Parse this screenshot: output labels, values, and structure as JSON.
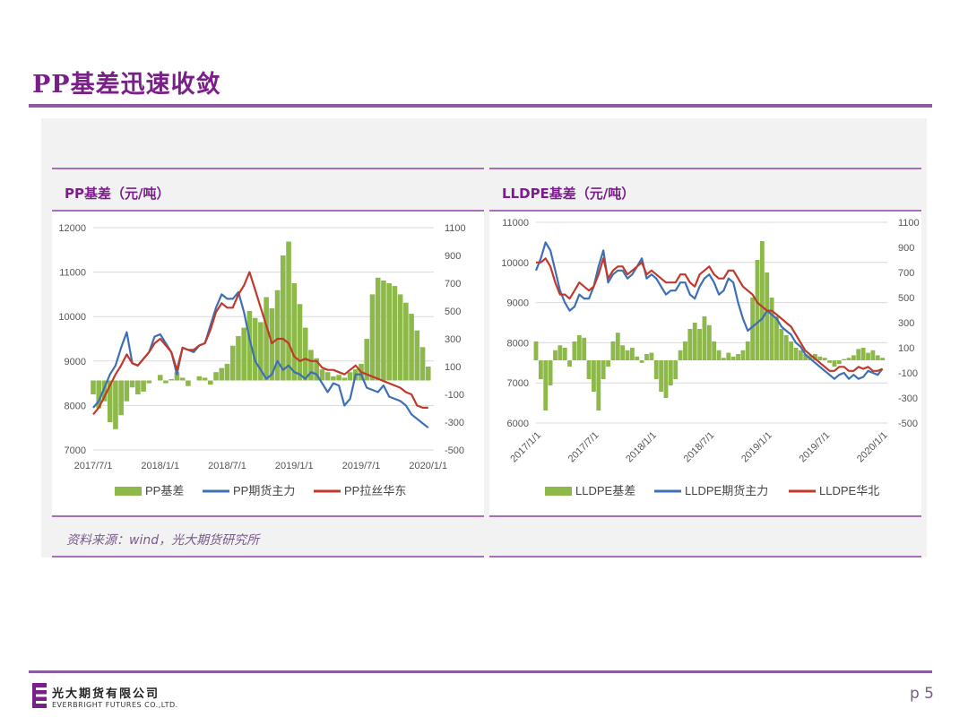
{
  "page": {
    "title": "PP基差迅速收敛",
    "page_number": "p 5"
  },
  "source_text": "资料来源：wind，光大期货研究所",
  "footer": {
    "company_cn": "光大期货有限公司",
    "company_en": "EVERBRIGHT FUTURES CO.,LTD."
  },
  "colors": {
    "purple": "#7a1f8a",
    "basis": "#8db84a",
    "futures": "#3d6fb5",
    "spot": "#c0392b"
  },
  "chart_data": [
    {
      "type": "line",
      "title": "PP基差（元/吨）",
      "x_ticks": [
        "2017/7/1",
        "2018/1/1",
        "2018/7/1",
        "2019/1/1",
        "2019/7/1",
        "2020/1/1"
      ],
      "x_tick_rotation": 0,
      "x_range": [
        0,
        30.5
      ],
      "y_left": {
        "ticks": [
          "12000",
          "11000",
          "10000",
          "9000",
          "8000",
          "7000"
        ],
        "range": [
          7000,
          12000
        ]
      },
      "y_right": {
        "ticks": [
          "1100",
          "900",
          "700",
          "500",
          "300",
          "100",
          "-100",
          "-300",
          "-500"
        ],
        "range": [
          -500,
          1100
        ]
      },
      "legend": [
        "PP基差",
        "PP期货主力",
        "PP拉丝华东"
      ],
      "series": [
        {
          "name": "PP基差",
          "kind": "bar",
          "axis": "right",
          "x": [
            0,
            0.5,
            1,
            1.5,
            2,
            2.5,
            3,
            3.5,
            4,
            4.5,
            5,
            5.5,
            6,
            6.5,
            7,
            7.5,
            8,
            8.5,
            9,
            9.5,
            10,
            10.5,
            11,
            11.5,
            12,
            12.5,
            13,
            13.5,
            14,
            14.5,
            15,
            15.5,
            16,
            16.5,
            17,
            17.5,
            18,
            18.5,
            19,
            19.5,
            20,
            20.5,
            21,
            21.5,
            22,
            22.5,
            23,
            23.5,
            24,
            24.5,
            25,
            25.5,
            26,
            26.5,
            27,
            27.5,
            28,
            28.5,
            29,
            29.5,
            30
          ],
          "values": [
            -100,
            -200,
            -150,
            -300,
            -350,
            -250,
            -150,
            -50,
            -100,
            -80,
            -20,
            0,
            40,
            -20,
            10,
            60,
            20,
            -40,
            0,
            30,
            20,
            -30,
            60,
            90,
            120,
            250,
            320,
            380,
            500,
            450,
            420,
            600,
            520,
            650,
            900,
            1000,
            700,
            550,
            380,
            220,
            160,
            80,
            60,
            30,
            40,
            20,
            60,
            80,
            120,
            300,
            620,
            740,
            720,
            700,
            680,
            620,
            560,
            480,
            360,
            240,
            100
          ]
        },
        {
          "name": "PP期货主力",
          "kind": "line",
          "axis": "left",
          "x": [
            0,
            0.5,
            1,
            1.5,
            2,
            2.5,
            3,
            3.5,
            4,
            4.5,
            5,
            5.5,
            6,
            6.5,
            7,
            7.5,
            8,
            8.5,
            9,
            9.5,
            10,
            10.5,
            11,
            11.5,
            12,
            12.5,
            13,
            13.5,
            14,
            14.5,
            15,
            15.5,
            16,
            16.5,
            17,
            17.5,
            18,
            18.5,
            19,
            19.5,
            20,
            20.5,
            21,
            21.5,
            22,
            22.5,
            23,
            23.5,
            24,
            24.5,
            25,
            25.5,
            26,
            26.5,
            27,
            27.5,
            28,
            28.5,
            29,
            29.5,
            30
          ],
          "values": [
            7950,
            8100,
            8400,
            8700,
            8900,
            9300,
            9650,
            8950,
            8900,
            9050,
            9200,
            9550,
            9600,
            9400,
            9200,
            8700,
            9300,
            9250,
            9200,
            9350,
            9400,
            9800,
            10200,
            10500,
            10400,
            10400,
            10550,
            10100,
            9500,
            9000,
            8800,
            8600,
            8700,
            9000,
            8800,
            8900,
            8750,
            8700,
            8600,
            8750,
            8700,
            8500,
            8300,
            8500,
            8450,
            8000,
            8150,
            8700,
            8700,
            8400,
            8350,
            8300,
            8450,
            8200,
            8150,
            8100,
            8000,
            7800,
            7700,
            7600,
            7500
          ]
        },
        {
          "name": "PP拉丝华东",
          "kind": "line",
          "axis": "left",
          "x": [
            0,
            0.5,
            1,
            1.5,
            2,
            2.5,
            3,
            3.5,
            4,
            4.5,
            5,
            5.5,
            6,
            6.5,
            7,
            7.5,
            8,
            8.5,
            9,
            9.5,
            10,
            10.5,
            11,
            11.5,
            12,
            12.5,
            13,
            13.5,
            14,
            14.5,
            15,
            15.5,
            16,
            16.5,
            17,
            17.5,
            18,
            18.5,
            19,
            19.5,
            20,
            20.5,
            21,
            21.5,
            22,
            22.5,
            23,
            23.5,
            24,
            24.5,
            25,
            25.5,
            26,
            26.5,
            27,
            27.5,
            28,
            28.5,
            29,
            29.5,
            30
          ],
          "values": [
            7800,
            7950,
            8200,
            8450,
            8700,
            8900,
            9150,
            8950,
            8900,
            9050,
            9200,
            9400,
            9500,
            9350,
            9200,
            8800,
            9300,
            9250,
            9250,
            9350,
            9400,
            9700,
            10100,
            10300,
            10200,
            10200,
            10500,
            10700,
            11000,
            10600,
            10200,
            9800,
            9400,
            9500,
            9500,
            9400,
            9100,
            9000,
            9050,
            9000,
            9000,
            8850,
            8800,
            8800,
            8750,
            8700,
            8800,
            8900,
            8750,
            8700,
            8650,
            8600,
            8550,
            8500,
            8450,
            8400,
            8300,
            8250,
            8000,
            7950,
            7950
          ]
        }
      ]
    },
    {
      "type": "line",
      "title": "LLDPE基差（元/吨）",
      "x_ticks": [
        "2017/1/1",
        "2017/7/1",
        "2018/1/1",
        "2018/7/1",
        "2019/1/1",
        "2019/7/1",
        "2020/1/1"
      ],
      "x_tick_rotation": -45,
      "x_range": [
        0,
        36.5
      ],
      "y_left": {
        "ticks": [
          "11000",
          "10000",
          "9000",
          "8000",
          "7000",
          "6000"
        ],
        "range": [
          6000,
          11000
        ]
      },
      "y_right": {
        "ticks": [
          "1100",
          "900",
          "700",
          "500",
          "300",
          "100",
          "-100",
          "-300",
          "-500"
        ],
        "range": [
          -500,
          1100
        ]
      },
      "legend": [
        "LLDPE基差",
        "LLDPE期货主力",
        "LLDPE华北"
      ],
      "series": [
        {
          "name": "LLDPE基差",
          "kind": "bar",
          "axis": "right",
          "x": [
            0,
            0.5,
            1,
            1.5,
            2,
            2.5,
            3,
            3.5,
            4,
            4.5,
            5,
            5.5,
            6,
            6.5,
            7,
            7.5,
            8,
            8.5,
            9,
            9.5,
            10,
            10.5,
            11,
            11.5,
            12,
            12.5,
            13,
            13.5,
            14,
            14.5,
            15,
            15.5,
            16,
            16.5,
            17,
            17.5,
            18,
            18.5,
            19,
            19.5,
            20,
            20.5,
            21,
            21.5,
            22,
            22.5,
            23,
            23.5,
            24,
            24.5,
            25,
            25.5,
            26,
            26.5,
            27,
            27.5,
            28,
            28.5,
            29,
            29.5,
            30,
            30.5,
            31,
            31.5,
            32,
            32.5,
            33,
            33.5,
            34,
            34.5,
            35,
            35.5,
            36
          ],
          "values": [
            150,
            -150,
            -400,
            -200,
            80,
            120,
            100,
            -50,
            150,
            200,
            180,
            -150,
            -250,
            -400,
            -150,
            -50,
            150,
            220,
            120,
            80,
            100,
            30,
            -20,
            50,
            60,
            -150,
            -250,
            -300,
            -200,
            -150,
            80,
            150,
            250,
            300,
            250,
            350,
            280,
            150,
            80,
            20,
            60,
            30,
            50,
            80,
            150,
            500,
            800,
            950,
            700,
            500,
            350,
            250,
            200,
            150,
            100,
            80,
            50,
            40,
            50,
            30,
            20,
            -20,
            -50,
            -30,
            10,
            20,
            40,
            90,
            100,
            60,
            80,
            40,
            20
          ]
        },
        {
          "name": "LLDPE期货主力",
          "kind": "line",
          "axis": "left",
          "x": [
            0,
            0.5,
            1,
            1.5,
            2,
            2.5,
            3,
            3.5,
            4,
            4.5,
            5,
            5.5,
            6,
            6.5,
            7,
            7.5,
            8,
            8.5,
            9,
            9.5,
            10,
            10.5,
            11,
            11.5,
            12,
            12.5,
            13,
            13.5,
            14,
            14.5,
            15,
            15.5,
            16,
            16.5,
            17,
            17.5,
            18,
            18.5,
            19,
            19.5,
            20,
            20.5,
            21,
            21.5,
            22,
            22.5,
            23,
            23.5,
            24,
            24.5,
            25,
            25.5,
            26,
            26.5,
            27,
            27.5,
            28,
            28.5,
            29,
            29.5,
            30,
            30.5,
            31,
            31.5,
            32,
            32.5,
            33,
            33.5,
            34,
            34.5,
            35,
            35.5,
            36
          ],
          "values": [
            9800,
            10100,
            10500,
            10300,
            9800,
            9300,
            9000,
            8800,
            8900,
            9200,
            9100,
            9100,
            9400,
            9900,
            10300,
            9500,
            9700,
            9800,
            9800,
            9600,
            9700,
            9900,
            10100,
            9600,
            9700,
            9600,
            9400,
            9200,
            9300,
            9300,
            9500,
            9500,
            9200,
            9100,
            9400,
            9600,
            9700,
            9500,
            9200,
            9300,
            9600,
            9500,
            9000,
            8600,
            8300,
            8400,
            8500,
            8600,
            8800,
            8700,
            8600,
            8400,
            8300,
            8200,
            8000,
            7900,
            7700,
            7600,
            7500,
            7400,
            7300,
            7200,
            7100,
            7200,
            7250,
            7100,
            7200,
            7100,
            7150,
            7300,
            7250,
            7200,
            7350
          ]
        },
        {
          "name": "LLDPE华北",
          "kind": "line",
          "axis": "left",
          "x": [
            0,
            0.5,
            1,
            1.5,
            2,
            2.5,
            3,
            3.5,
            4,
            4.5,
            5,
            5.5,
            6,
            6.5,
            7,
            7.5,
            8,
            8.5,
            9,
            9.5,
            10,
            10.5,
            11,
            11.5,
            12,
            12.5,
            13,
            13.5,
            14,
            14.5,
            15,
            15.5,
            16,
            16.5,
            17,
            17.5,
            18,
            18.5,
            19,
            19.5,
            20,
            20.5,
            21,
            21.5,
            22,
            22.5,
            23,
            23.5,
            24,
            24.5,
            25,
            25.5,
            26,
            26.5,
            27,
            27.5,
            28,
            28.5,
            29,
            29.5,
            30,
            30.5,
            31,
            31.5,
            32,
            32.5,
            33,
            33.5,
            34,
            34.5,
            35,
            35.5,
            36
          ],
          "values": [
            10000,
            10000,
            10100,
            9900,
            9500,
            9200,
            9200,
            9100,
            9300,
            9500,
            9400,
            9300,
            9400,
            9700,
            10100,
            9600,
            9800,
            9900,
            9900,
            9700,
            9800,
            9900,
            10000,
            9700,
            9800,
            9700,
            9600,
            9500,
            9500,
            9500,
            9700,
            9700,
            9500,
            9400,
            9700,
            9800,
            9900,
            9700,
            9600,
            9600,
            9800,
            9800,
            9600,
            9400,
            9300,
            9200,
            9000,
            8900,
            8800,
            8800,
            8700,
            8600,
            8500,
            8400,
            8200,
            8000,
            7800,
            7700,
            7600,
            7500,
            7400,
            7300,
            7300,
            7400,
            7400,
            7300,
            7300,
            7400,
            7350,
            7400,
            7300,
            7300,
            7350
          ]
        }
      ]
    }
  ]
}
